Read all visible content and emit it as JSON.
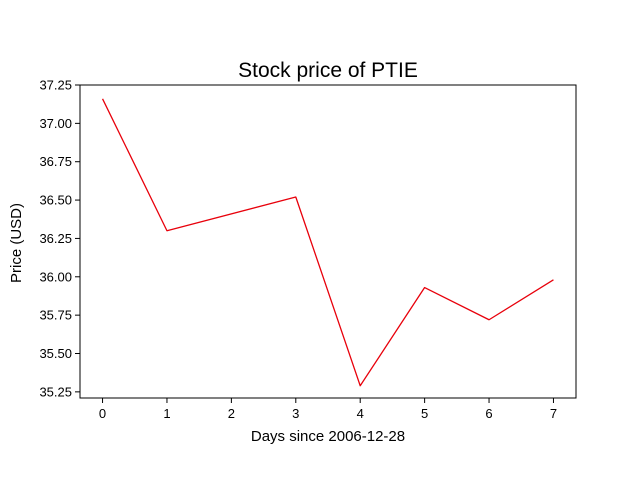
{
  "chart_data": {
    "type": "line",
    "title": "Stock price of PTIE",
    "xlabel": "Days since 2006-12-28",
    "ylabel": "Price (USD)",
    "x": [
      0,
      1,
      2,
      3,
      4,
      5,
      6,
      7
    ],
    "series": [
      {
        "x": [
          0,
          1,
          3,
          4,
          5,
          6,
          7
        ],
        "values": [
          37.16,
          36.3,
          36.52,
          35.29,
          35.93,
          35.72,
          35.98
        ],
        "color": "#e8000b"
      }
    ],
    "xlim": [
      -0.35,
      7.35
    ],
    "ylim": [
      35.21,
      37.25
    ],
    "xticks": [
      "0",
      "1",
      "2",
      "3",
      "4",
      "5",
      "6",
      "7"
    ],
    "yticks": [
      "35.25",
      "35.50",
      "35.75",
      "36.00",
      "36.25",
      "36.50",
      "36.75",
      "37.00",
      "37.25"
    ],
    "grid": false,
    "legend": "none"
  }
}
